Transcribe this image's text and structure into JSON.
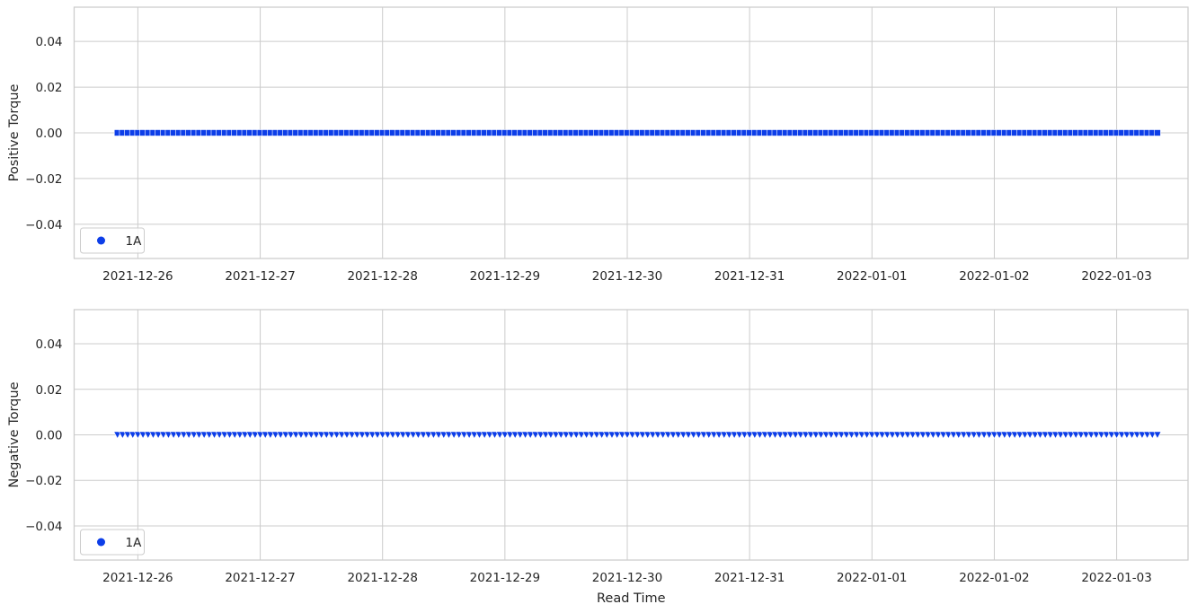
{
  "colors": {
    "series": "#0d3ee8",
    "grid": "#cccccc",
    "text": "#262626"
  },
  "chart_data": [
    {
      "type": "scatter",
      "title": "",
      "xlabel": "",
      "ylabel": "Positive Torque",
      "ylim": [
        -0.055,
        0.055
      ],
      "yticks": [
        -0.04,
        -0.02,
        0.0,
        0.02,
        0.04
      ],
      "ytick_labels": [
        "−0.04",
        "−0.02",
        "0.00",
        "0.02",
        "0.04"
      ],
      "xticks": [
        "2021-12-26",
        "2021-12-27",
        "2021-12-28",
        "2021-12-29",
        "2021-12-30",
        "2021-12-31",
        "2022-01-01",
        "2022-01-02",
        "2022-01-03"
      ],
      "xlim": [
        "2021-12-25 11:30",
        "2022-01-03 14:00"
      ],
      "grid": true,
      "legend_placement": "lower-left",
      "marker": "square",
      "series": [
        {
          "name": "1A",
          "x_start": "2021-12-25 20:00",
          "x_end": "2022-01-03 08:00",
          "x_step_hours": 1,
          "y": 0.0
        }
      ]
    },
    {
      "type": "scatter",
      "title": "",
      "xlabel": "Read Time",
      "ylabel": "Negative Torque",
      "ylim": [
        -0.055,
        0.055
      ],
      "yticks": [
        -0.04,
        -0.02,
        0.0,
        0.02,
        0.04
      ],
      "ytick_labels": [
        "−0.04",
        "−0.02",
        "0.00",
        "0.02",
        "0.04"
      ],
      "xticks": [
        "2021-12-26",
        "2021-12-27",
        "2021-12-28",
        "2021-12-29",
        "2021-12-30",
        "2021-12-31",
        "2022-01-01",
        "2022-01-02",
        "2022-01-03"
      ],
      "xlim": [
        "2021-12-25 11:30",
        "2022-01-03 14:00"
      ],
      "grid": true,
      "legend_placement": "lower-left",
      "marker": "triangle-down",
      "series": [
        {
          "name": "1A",
          "x_start": "2021-12-25 20:00",
          "x_end": "2022-01-03 08:00",
          "x_step_hours": 1,
          "y": 0.0
        }
      ]
    }
  ]
}
